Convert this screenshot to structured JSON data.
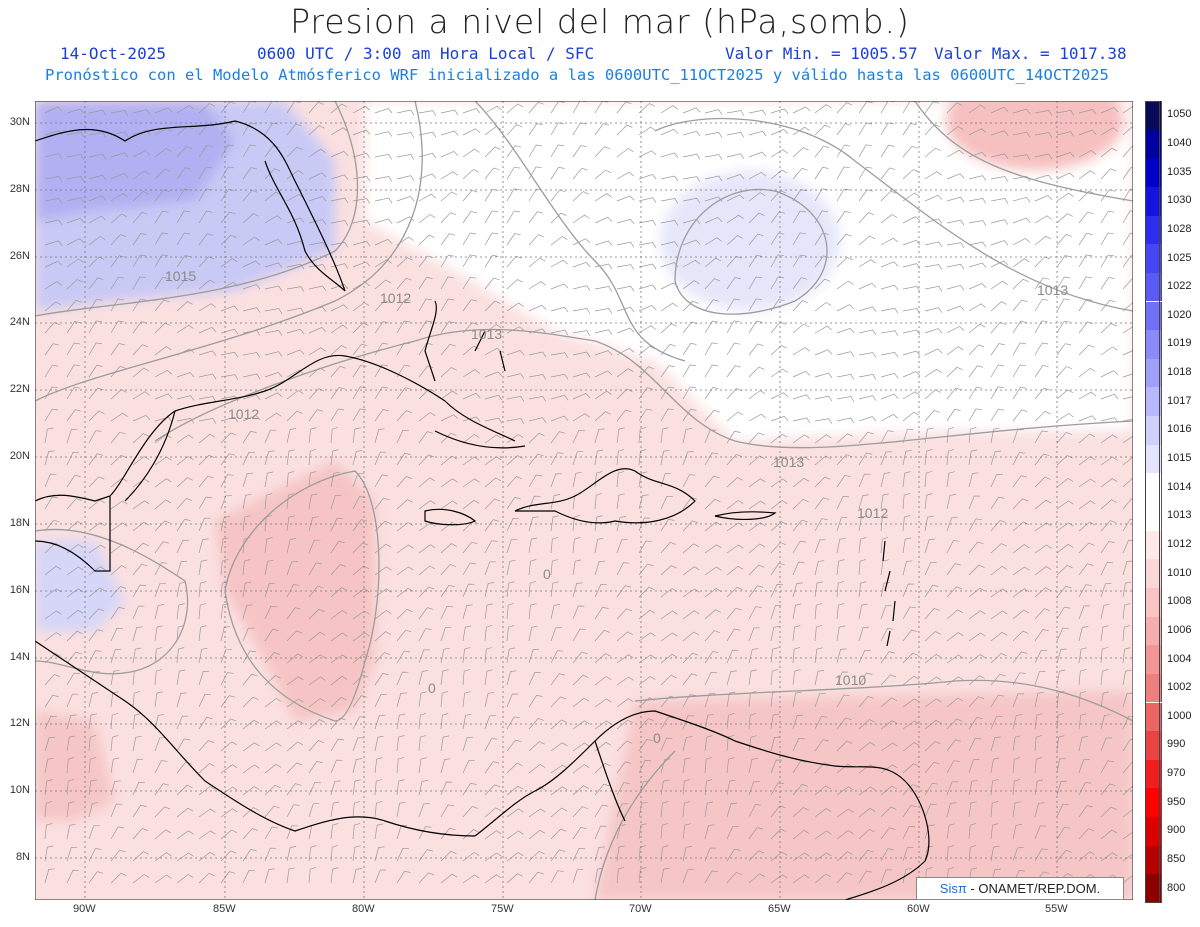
{
  "header": {
    "title": "Presion a nivel del mar (hPa,somb.)",
    "date": "14-Oct-2025",
    "time": "0600 UTC / 3:00 am Hora Local / SFC",
    "min_label": "Valor Min. = 1005.57",
    "max_label": "Valor Max. = 1017.38",
    "model_line": "Pronóstico con el Modelo Atmósferico WRF inicializado a las 0600UTC_11OCT2025 y válido hasta las  0600UTC_14OCT2025"
  },
  "map": {
    "lat_labels": [
      "30N",
      "28N",
      "26N",
      "24N",
      "22N",
      "20N",
      "18N",
      "16N",
      "14N",
      "12N",
      "10N",
      "8N"
    ],
    "lon_labels": [
      "90W",
      "85W",
      "80W",
      "75W",
      "70W",
      "65W",
      "60W",
      "55W"
    ],
    "contour_labels": [
      "1015",
      "1012",
      "1012",
      "1013",
      "1013",
      "1013",
      "1012",
      "1010",
      "0",
      "0",
      "0"
    ]
  },
  "legend": {
    "levels": [
      "1050",
      "1040",
      "1035",
      "1030",
      "1028",
      "1025",
      "1022",
      "1020",
      "1019",
      "1018",
      "1017",
      "1016",
      "1015",
      "1014",
      "1013",
      "1012",
      "1010",
      "1008",
      "1006",
      "1004",
      "1002",
      "1000",
      "990",
      "970",
      "950",
      "900",
      "850",
      "800"
    ],
    "colors": [
      "#0a0a5a",
      "#0000a0",
      "#0000c8",
      "#1414e0",
      "#2d2df0",
      "#4646f5",
      "#5a5af5",
      "#7070f8",
      "#8a8af8",
      "#a0a0fa",
      "#b8b8fc",
      "#d0d0fc",
      "#e4e4fe",
      "#ffffff",
      "#ffffff",
      "#fde9e9",
      "#fbd8d8",
      "#f8c4c4",
      "#f5aeae",
      "#f29696",
      "#ef7e7e",
      "#ec6464",
      "#e84444",
      "#f01e1e",
      "#ff0000",
      "#dc0000",
      "#b40000",
      "#8c0000"
    ]
  },
  "credit": {
    "brand": "Sisπ",
    "text": " - ONAMET/REP.DOM."
  }
}
